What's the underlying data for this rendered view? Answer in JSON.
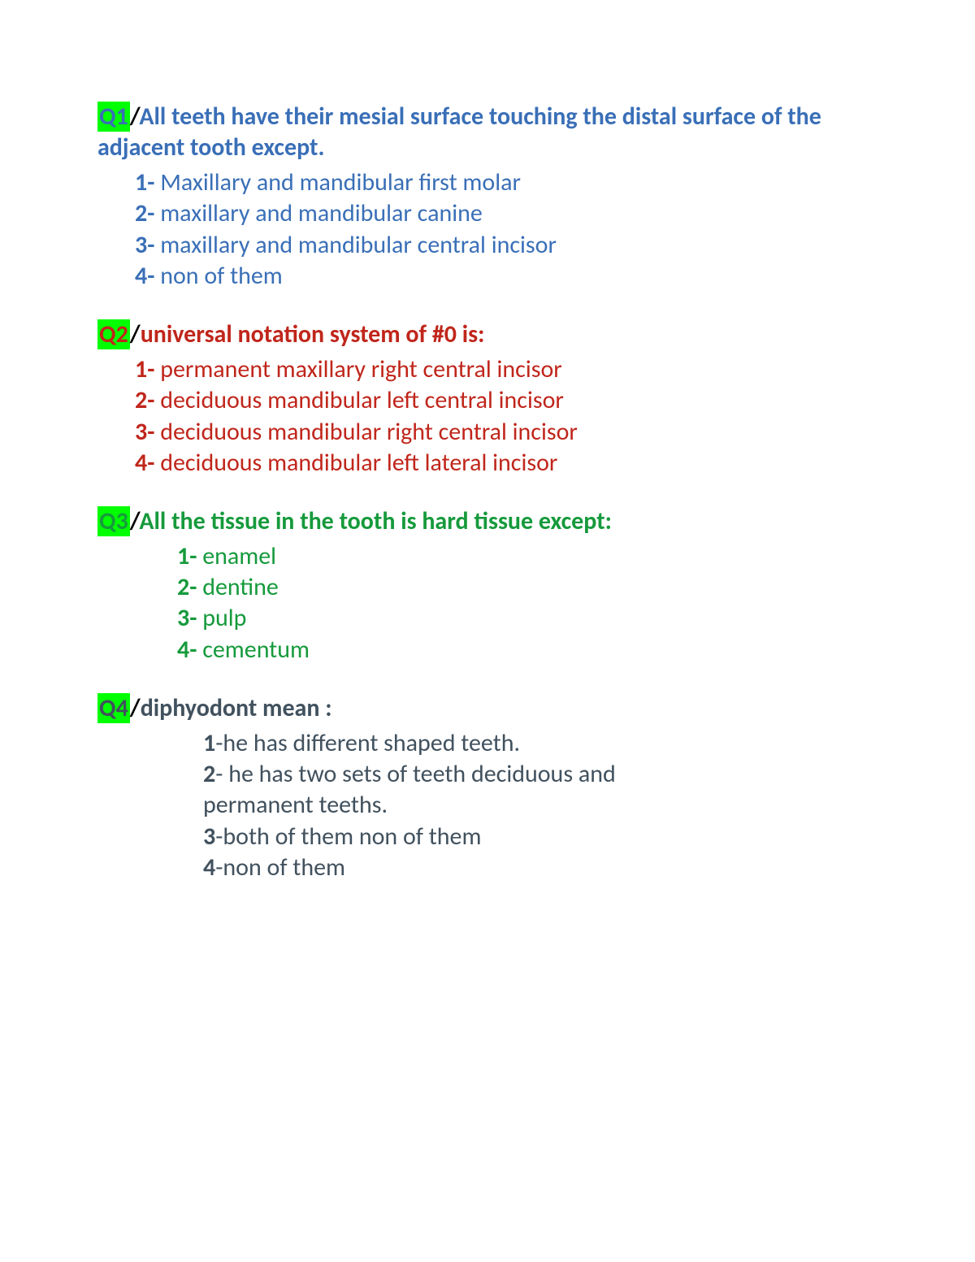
{
  "colors": {
    "highlight_bg": "#00ff00",
    "black": "#000000",
    "blue": "#3a6fb7",
    "red": "#c0261b",
    "green": "#169a3c",
    "slate": "#41515e"
  },
  "questions": [
    {
      "id": "q1",
      "label": "Q1",
      "label_color": "#3a6fb7",
      "text": "All teeth have their mesial surface touching the distal surface of the adjacent tooth except.",
      "text_color": "#3a6fb7",
      "opt_num_color": "#3a6fb7",
      "opt_text_color": "#3a6fb7",
      "indent_class": "ind1",
      "options": [
        "Maxillary and mandibular first molar",
        "maxillary and mandibular canine",
        " maxillary and mandibular central incisor",
        " non of them"
      ]
    },
    {
      "id": "q2",
      "label": "Q2",
      "label_color": "#c0261b",
      "text": "universal notation system of #0 is:",
      "text_color": "#c0261b",
      "opt_num_color": "#c0261b",
      "opt_text_color": "#c0261b",
      "indent_class": "ind2",
      "options": [
        "permanent maxillary right central incisor",
        "deciduous mandibular left central incisor",
        " deciduous mandibular right central incisor",
        "deciduous mandibular left lateral incisor"
      ]
    },
    {
      "id": "q3",
      "label": "Q3",
      "label_color": "#169a3c",
      "text": "All the tissue in the tooth is hard tissue except:",
      "text_color": "#169a3c",
      "opt_num_color": "#169a3c",
      "opt_text_color": "#169a3c",
      "indent_class": "ind3",
      "options": [
        "enamel",
        "dentine",
        "pulp",
        "cementum"
      ]
    },
    {
      "id": "q4",
      "label": "Q4",
      "label_color": "#41515e",
      "text": "diphyodont mean :",
      "text_color": "#41515e",
      "opt_num_color": "#41515e",
      "opt_text_color": "#41515e",
      "indent_class": "ind4",
      "dash_style": true,
      "options": [
        "he has different shaped teeth.",
        " he has two sets of teeth deciduous and permanent teeths.",
        "both of them non of them",
        "non of them"
      ]
    }
  ]
}
